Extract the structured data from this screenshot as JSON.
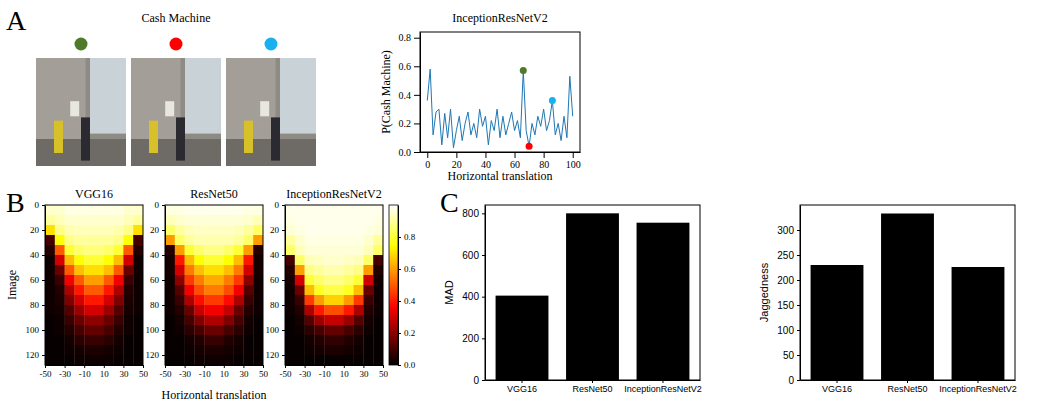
{
  "chart_data": [
    {
      "type": "images",
      "panel": "A",
      "title": "Cash Machine",
      "colors": [
        "#4e7a2a",
        "#ff0000",
        "#1ab0f0"
      ]
    },
    {
      "type": "line",
      "title": "InceptionResNetV2",
      "x_label": "Horizontal translation",
      "y_label": "P(Cash Machine)",
      "x": [
        0,
        2,
        4,
        6,
        8,
        10,
        12,
        14,
        16,
        18,
        20,
        22,
        24,
        26,
        28,
        30,
        32,
        34,
        36,
        38,
        40,
        42,
        44,
        46,
        48,
        50,
        52,
        54,
        56,
        58,
        60,
        62,
        64,
        66,
        68,
        70,
        72,
        74,
        76,
        78,
        80,
        82,
        84,
        86,
        88,
        90,
        92,
        94,
        96,
        98,
        100
      ],
      "values": [
        0.36,
        0.58,
        0.12,
        0.28,
        0.3,
        0.05,
        0.27,
        0.1,
        0.3,
        0.03,
        0.15,
        0.25,
        0.08,
        0.2,
        0.28,
        0.12,
        0.2,
        0.1,
        0.3,
        0.18,
        0.25,
        0.05,
        0.22,
        0.15,
        0.3,
        0.1,
        0.25,
        0.12,
        0.2,
        0.28,
        0.15,
        0.22,
        0.1,
        0.57,
        0.15,
        0.04,
        0.2,
        0.12,
        0.25,
        0.18,
        0.3,
        0.15,
        0.22,
        0.36,
        0.12,
        0.2,
        0.08,
        0.25,
        0.1,
        0.53,
        0.25
      ],
      "color": "#1f77b4",
      "highlighted_points": [
        {
          "x": 66,
          "value": 0.57,
          "color": "#4e7a2a"
        },
        {
          "x": 70,
          "value": 0.04,
          "color": "#ff0000"
        },
        {
          "x": 86,
          "value": 0.36,
          "color": "#1ab0f0"
        }
      ],
      "xlim": [
        -5,
        105
      ],
      "ylim": [
        0,
        0.84
      ],
      "xticks": [
        0,
        20,
        40,
        60,
        80,
        100
      ],
      "yticks": [
        {
          "value": 0,
          "label": "0.0"
        },
        {
          "value": 0.2,
          "label": "0.2"
        },
        {
          "value": 0.4,
          "label": "0.4"
        },
        {
          "value": 0.6,
          "label": "0.6"
        },
        {
          "value": 0.8,
          "label": "0.8"
        }
      ]
    },
    {
      "type": "heatmap",
      "panel": "B",
      "title": "VGG16",
      "x_label": "Horizontal translation",
      "y_label": "Image",
      "xlim": [
        -50,
        50
      ],
      "ylim": [
        0,
        128
      ],
      "xticks": [
        -50,
        -30,
        -10,
        10,
        30,
        50
      ],
      "yticks": [
        0,
        20,
        40,
        60,
        80,
        100,
        120
      ],
      "cells": [
        [
          0.95,
          0.95,
          0.97,
          0.97,
          0.97,
          0.97,
          0.97,
          0.97,
          0.95,
          0.95
        ],
        [
          0.9,
          0.93,
          0.95,
          0.95,
          0.95,
          0.95,
          0.95,
          0.95,
          0.93,
          0.9
        ],
        [
          0.7,
          0.88,
          0.92,
          0.93,
          0.93,
          0.93,
          0.93,
          0.92,
          0.88,
          0.7
        ],
        [
          0.1,
          0.75,
          0.88,
          0.9,
          0.9,
          0.9,
          0.9,
          0.88,
          0.75,
          0.1
        ],
        [
          0.05,
          0.5,
          0.8,
          0.85,
          0.87,
          0.87,
          0.85,
          0.8,
          0.5,
          0.05
        ],
        [
          0.02,
          0.3,
          0.65,
          0.75,
          0.8,
          0.8,
          0.75,
          0.65,
          0.3,
          0.02
        ],
        [
          0.02,
          0.15,
          0.5,
          0.65,
          0.7,
          0.7,
          0.65,
          0.5,
          0.15,
          0.02
        ],
        [
          0.02,
          0.08,
          0.35,
          0.5,
          0.6,
          0.6,
          0.5,
          0.35,
          0.08,
          0.02
        ],
        [
          0.02,
          0.05,
          0.25,
          0.4,
          0.5,
          0.5,
          0.4,
          0.25,
          0.05,
          0.02
        ],
        [
          0.02,
          0.04,
          0.18,
          0.3,
          0.4,
          0.4,
          0.3,
          0.18,
          0.04,
          0.02
        ],
        [
          0.02,
          0.03,
          0.12,
          0.22,
          0.3,
          0.3,
          0.22,
          0.12,
          0.03,
          0.02
        ],
        [
          0.01,
          0.02,
          0.08,
          0.15,
          0.2,
          0.2,
          0.15,
          0.08,
          0.02,
          0.01
        ],
        [
          0.01,
          0.02,
          0.05,
          0.1,
          0.14,
          0.14,
          0.1,
          0.05,
          0.02,
          0.01
        ],
        [
          0.01,
          0.01,
          0.03,
          0.06,
          0.08,
          0.08,
          0.06,
          0.03,
          0.01,
          0.01
        ],
        [
          0.01,
          0.01,
          0.02,
          0.03,
          0.04,
          0.04,
          0.03,
          0.02,
          0.01,
          0.01
        ],
        [
          0.01,
          0.01,
          0.01,
          0.02,
          0.02,
          0.02,
          0.02,
          0.01,
          0.01,
          0.01
        ]
      ]
    },
    {
      "type": "heatmap",
      "title": "ResNet50",
      "xlim": [
        -50,
        50
      ],
      "ylim": [
        0,
        128
      ],
      "xticks": [
        -50,
        -30,
        -10,
        10,
        30,
        50
      ],
      "yticks": [
        0,
        20,
        40,
        60,
        80,
        100,
        120
      ],
      "cells": [
        [
          0.97,
          0.97,
          0.98,
          0.98,
          0.98,
          0.98,
          0.98,
          0.98,
          0.97,
          0.97
        ],
        [
          0.93,
          0.95,
          0.96,
          0.96,
          0.96,
          0.96,
          0.96,
          0.96,
          0.95,
          0.93
        ],
        [
          0.85,
          0.9,
          0.93,
          0.94,
          0.94,
          0.94,
          0.94,
          0.93,
          0.9,
          0.85
        ],
        [
          0.6,
          0.85,
          0.9,
          0.92,
          0.92,
          0.92,
          0.92,
          0.9,
          0.85,
          0.6
        ],
        [
          0.05,
          0.6,
          0.8,
          0.85,
          0.88,
          0.88,
          0.85,
          0.8,
          0.6,
          0.05
        ],
        [
          0.03,
          0.4,
          0.65,
          0.75,
          0.8,
          0.8,
          0.75,
          0.65,
          0.4,
          0.03
        ],
        [
          0.03,
          0.3,
          0.55,
          0.65,
          0.7,
          0.7,
          0.65,
          0.55,
          0.3,
          0.03
        ],
        [
          0.02,
          0.2,
          0.45,
          0.55,
          0.62,
          0.62,
          0.55,
          0.45,
          0.2,
          0.02
        ],
        [
          0.02,
          0.12,
          0.35,
          0.48,
          0.55,
          0.55,
          0.48,
          0.35,
          0.12,
          0.02
        ],
        [
          0.02,
          0.08,
          0.25,
          0.38,
          0.45,
          0.45,
          0.38,
          0.25,
          0.08,
          0.02
        ],
        [
          0.02,
          0.05,
          0.15,
          0.28,
          0.35,
          0.35,
          0.28,
          0.15,
          0.05,
          0.02
        ],
        [
          0.01,
          0.03,
          0.1,
          0.18,
          0.25,
          0.25,
          0.18,
          0.1,
          0.03,
          0.01
        ],
        [
          0.01,
          0.02,
          0.06,
          0.1,
          0.15,
          0.15,
          0.1,
          0.06,
          0.02,
          0.01
        ],
        [
          0.01,
          0.01,
          0.03,
          0.05,
          0.08,
          0.08,
          0.05,
          0.03,
          0.01,
          0.01
        ],
        [
          0.01,
          0.01,
          0.02,
          0.03,
          0.04,
          0.04,
          0.03,
          0.02,
          0.01,
          0.01
        ],
        [
          0.01,
          0.01,
          0.01,
          0.02,
          0.02,
          0.02,
          0.02,
          0.01,
          0.01,
          0.01
        ]
      ]
    },
    {
      "type": "heatmap",
      "title": "InceptionResNetV2",
      "xlim": [
        -50,
        50
      ],
      "ylim": [
        0,
        128
      ],
      "xticks": [
        -50,
        -30,
        -10,
        10,
        30,
        50
      ],
      "yticks": [
        0,
        20,
        40,
        60,
        80,
        100,
        120
      ],
      "cells": [
        [
          0.98,
          0.98,
          0.98,
          0.98,
          0.98,
          0.98,
          0.98,
          0.98,
          0.98,
          0.98
        ],
        [
          0.97,
          0.98,
          0.98,
          0.98,
          0.98,
          0.98,
          0.98,
          0.98,
          0.98,
          0.97
        ],
        [
          0.96,
          0.97,
          0.98,
          0.98,
          0.98,
          0.98,
          0.98,
          0.98,
          0.97,
          0.96
        ],
        [
          0.9,
          0.95,
          0.97,
          0.97,
          0.97,
          0.97,
          0.97,
          0.97,
          0.95,
          0.9
        ],
        [
          0.85,
          0.93,
          0.96,
          0.96,
          0.96,
          0.96,
          0.96,
          0.96,
          0.93,
          0.85
        ],
        [
          0.1,
          0.85,
          0.93,
          0.94,
          0.95,
          0.95,
          0.94,
          0.93,
          0.85,
          0.1
        ],
        [
          0.05,
          0.6,
          0.88,
          0.9,
          0.92,
          0.92,
          0.9,
          0.88,
          0.6,
          0.05
        ],
        [
          0.03,
          0.3,
          0.8,
          0.85,
          0.88,
          0.88,
          0.85,
          0.8,
          0.3,
          0.03
        ],
        [
          0.02,
          0.15,
          0.65,
          0.78,
          0.82,
          0.82,
          0.78,
          0.65,
          0.15,
          0.02
        ],
        [
          0.02,
          0.08,
          0.45,
          0.6,
          0.68,
          0.68,
          0.6,
          0.45,
          0.08,
          0.02
        ],
        [
          0.02,
          0.05,
          0.25,
          0.4,
          0.48,
          0.48,
          0.4,
          0.25,
          0.05,
          0.02
        ],
        [
          0.01,
          0.03,
          0.12,
          0.22,
          0.28,
          0.28,
          0.22,
          0.12,
          0.03,
          0.01
        ],
        [
          0.01,
          0.02,
          0.06,
          0.1,
          0.14,
          0.14,
          0.1,
          0.06,
          0.02,
          0.01
        ],
        [
          0.01,
          0.01,
          0.03,
          0.05,
          0.07,
          0.07,
          0.05,
          0.03,
          0.01,
          0.01
        ],
        [
          0.01,
          0.01,
          0.02,
          0.03,
          0.04,
          0.04,
          0.03,
          0.02,
          0.01,
          0.01
        ],
        [
          0.01,
          0.01,
          0.01,
          0.01,
          0.01,
          0.01,
          0.01,
          0.01,
          0.01,
          0.01
        ]
      ],
      "colorbar": {
        "range": [
          0,
          1
        ],
        "ticks": [
          {
            "value": 0,
            "label": "0.0"
          },
          {
            "value": 0.2,
            "label": "0.2"
          },
          {
            "value": 0.4,
            "label": "0.4"
          },
          {
            "value": 0.6,
            "label": "0.6"
          },
          {
            "value": 0.8,
            "label": "0.8"
          }
        ]
      }
    },
    {
      "type": "bar",
      "panel": "C",
      "y_label": "MAD",
      "categories": [
        "VGG16",
        "ResNet50",
        "InceptionResNetV2"
      ],
      "values": [
        405,
        800,
        755
      ],
      "color": "#000000",
      "ylim": [
        0,
        840
      ],
      "yticks": [
        0,
        200,
        400,
        600,
        800
      ]
    },
    {
      "type": "bar",
      "y_label": "Jaggedness",
      "categories": [
        "VGG16",
        "ResNet50",
        "InceptionResNetV2"
      ],
      "values": [
        230,
        333,
        226
      ],
      "color": "#000000",
      "ylim": [
        0,
        350
      ],
      "yticks": [
        0,
        50,
        100,
        150,
        200,
        250,
        300
      ]
    }
  ]
}
